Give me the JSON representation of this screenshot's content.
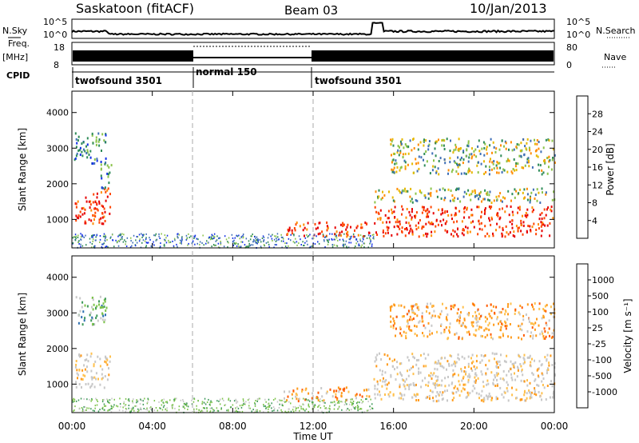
{
  "header": {
    "station": "Saskatoon (fitACF)",
    "beam": "Beam 03",
    "date": "10/Jan/2013"
  },
  "strip_labels": {
    "nsky": "N.Sky",
    "freq_line1": "Freq.",
    "freq_line2": "[MHz]",
    "cpid": "CPID",
    "nsearch": "N.Search",
    "nave": "Nave",
    "nsky_ticks": [
      "10^5",
      "10^0"
    ],
    "nsearch_ticks": [
      "10^5",
      "10^0"
    ],
    "freq_ticks": [
      "18",
      "8"
    ],
    "nave_ticks": [
      "80",
      "0"
    ]
  },
  "cpid_segments": [
    {
      "label": "twofsound 3501",
      "start_h": 0,
      "end_h": 6
    },
    {
      "label": "normal 150",
      "start_h": 6,
      "end_h": 12
    },
    {
      "label": "twofsound 3501",
      "start_h": 12,
      "end_h": 24
    }
  ],
  "x_axis": {
    "label": "Time UT",
    "ticks": [
      "00:00",
      "04:00",
      "08:00",
      "12:00",
      "16:00",
      "20:00",
      "00:00"
    ]
  },
  "power_colorbar": {
    "label": "Power [dB]",
    "ticks": [
      "28",
      "24",
      "20",
      "16",
      "12",
      "8",
      "4"
    ],
    "colors": [
      "#e60000",
      "#ff4500",
      "#ff8c00",
      "#e6b800",
      "#8bc34a",
      "#2e8b57",
      "#3f6fb6",
      "#1230e6"
    ]
  },
  "velocity_colorbar": {
    "label": "Velocity [m s⁻¹]",
    "ticks": [
      "1000",
      "500",
      "100",
      "25",
      "-25",
      "-100",
      "-500",
      "-1000"
    ],
    "colors": [
      "#1f3fbf",
      "#2e6fb0",
      "#3f9a5a",
      "#7cc34a",
      "#c8c8c8",
      "#ffc04d",
      "#ff9a1a",
      "#ff5a00",
      "#e60000"
    ]
  },
  "chart_data": [
    {
      "type": "heatmap",
      "title": "Power",
      "xlabel": "Time UT",
      "ylabel": "Slant Range [km]",
      "xlim": [
        "00:00",
        "24:00"
      ],
      "ylim": [
        200,
        4600
      ],
      "yticks": [
        1000,
        2000,
        3000,
        4000
      ],
      "regions": [
        {
          "t0": 0.1,
          "t1": 1.9,
          "r0": 900,
          "r1": 1900,
          "level": "high"
        },
        {
          "t0": 0.1,
          "t1": 1.7,
          "r0": 2600,
          "r1": 3500,
          "level": "low"
        },
        {
          "t0": 1.4,
          "t1": 2.0,
          "r0": 1900,
          "r1": 2700,
          "level": "low"
        },
        {
          "t0": 10.5,
          "t1": 14.8,
          "r0": 550,
          "r1": 950,
          "level": "high"
        },
        {
          "t0": 15.0,
          "t1": 24.0,
          "r0": 550,
          "r1": 1400,
          "level": "high"
        },
        {
          "t0": 15.0,
          "t1": 24.0,
          "r0": 1500,
          "r1": 1900,
          "level": "mid"
        },
        {
          "t0": 15.8,
          "t1": 24.0,
          "r0": 2300,
          "r1": 3300,
          "level": "mid"
        }
      ]
    },
    {
      "type": "heatmap",
      "title": "Velocity",
      "xlabel": "Time UT",
      "ylabel": "Slant Range [km]",
      "xlim": [
        "00:00",
        "24:00"
      ],
      "ylim": [
        200,
        4600
      ],
      "yticks": [
        1000,
        2000,
        3000,
        4000
      ],
      "regions": [
        {
          "t0": 0.1,
          "t1": 1.9,
          "r0": 900,
          "r1": 1900,
          "level": "neutral"
        },
        {
          "t0": 0.1,
          "t1": 1.7,
          "r0": 2600,
          "r1": 3500,
          "level": "toward"
        },
        {
          "t0": 10.5,
          "t1": 14.8,
          "r0": 550,
          "r1": 950,
          "level": "away"
        },
        {
          "t0": 15.0,
          "t1": 24.0,
          "r0": 550,
          "r1": 1900,
          "level": "neutral"
        },
        {
          "t0": 15.8,
          "t1": 24.0,
          "r0": 2300,
          "r1": 3300,
          "level": "away"
        }
      ]
    }
  ]
}
